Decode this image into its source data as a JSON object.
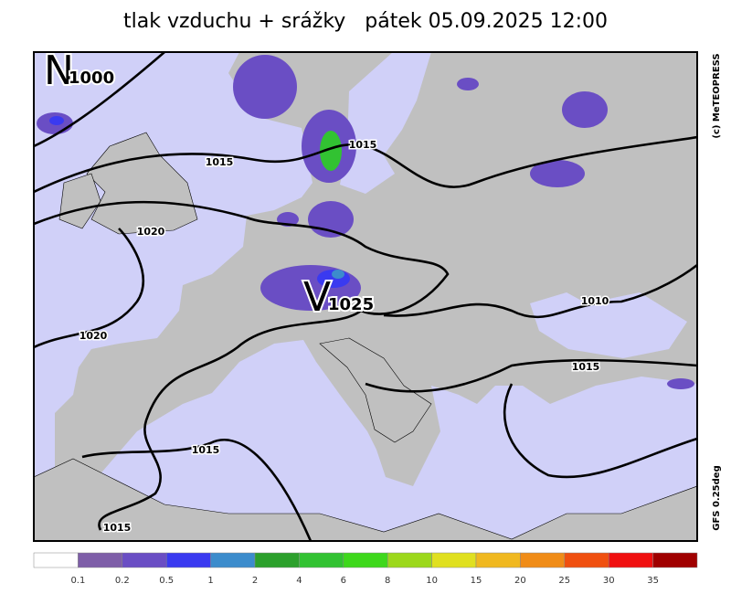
{
  "header": {
    "title": "tlak vzduchu + srážky   pátek 05.09.2025 12:00"
  },
  "side": {
    "copyright": "(c) MeTEOPRESS",
    "model": "GFS 0.25deg"
  },
  "map": {
    "isobar_labels": [
      "1015",
      "1020",
      "1015",
      "1020",
      "1015",
      "1015",
      "1010",
      "1015"
    ],
    "centers": [
      {
        "letter": "N",
        "value": "1000"
      },
      {
        "letter": "V",
        "value": "1025"
      }
    ]
  },
  "legend": {
    "colors": [
      "#ffffff",
      "#7e5ea8",
      "#6a4ec4",
      "#3a3af0",
      "#3c8ccc",
      "#2ca02c",
      "#32c232",
      "#3ed81c",
      "#9cd81c",
      "#e0e020",
      "#f0b820",
      "#f08c18",
      "#f05010",
      "#f01010",
      "#a00000"
    ],
    "labels": [
      "0.1",
      "0.2",
      "0.5",
      "1",
      "2",
      "4",
      "6",
      "8",
      "10",
      "15",
      "20",
      "25",
      "30",
      "35"
    ]
  }
}
